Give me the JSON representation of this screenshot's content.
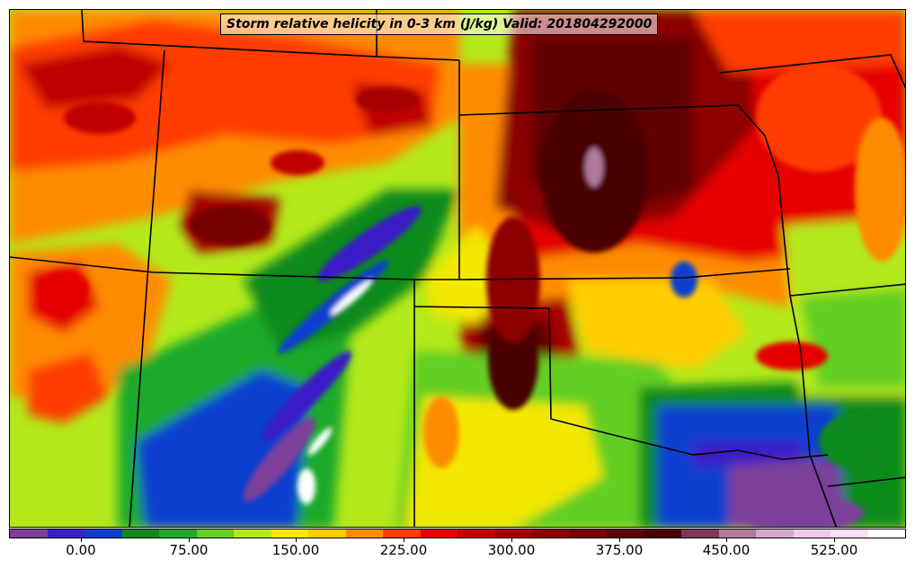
{
  "title": "Storm relative helicity in 0-3 km (J/kg) Valid: 201804292000",
  "colorbar": {
    "min": -50,
    "max": 575,
    "step": 25,
    "tick_labels": [
      "0.00",
      "75.00",
      "150.00",
      "225.00",
      "300.00",
      "375.00",
      "450.00",
      "525.00"
    ],
    "tick_values": [
      0,
      75,
      150,
      225,
      300,
      375,
      450,
      525
    ],
    "colors": [
      "#7b3f9a",
      "#3a1fc8",
      "#0a3fd0",
      "#0c8a1e",
      "#1faa2a",
      "#62cf20",
      "#b3e81a",
      "#f2e800",
      "#ffcc00",
      "#ff8c00",
      "#ff3c00",
      "#e60000",
      "#c00000",
      "#a50000",
      "#8c0000",
      "#760000",
      "#600000",
      "#4a0000",
      "#7a3b5a",
      "#b07a9a",
      "#d8a8cc",
      "#f0c8ec",
      "#fbe0f8",
      "#ffffff"
    ]
  },
  "colors": {
    "state_border": "#000000"
  }
}
